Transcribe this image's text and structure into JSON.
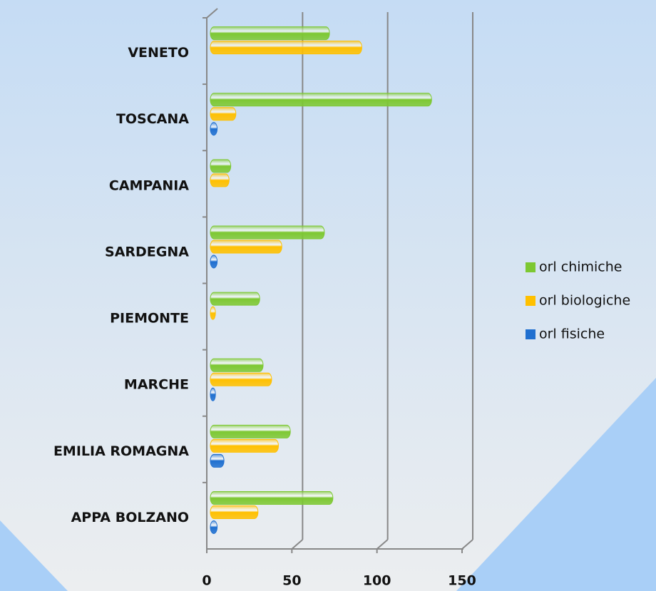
{
  "chart_data": {
    "type": "bar",
    "orientation": "horizontal",
    "categories": [
      "VENETO",
      "TOSCANA",
      "CAMPANIA",
      "SARDEGNA",
      "PIEMONTE",
      "MARCHE",
      "EMILIA ROMAGNA",
      "APPA BOLZANO"
    ],
    "series": [
      {
        "name": "orl chimiche",
        "color": "#7dc832",
        "values": [
          70,
          130,
          12,
          67,
          29,
          31,
          47,
          72
        ]
      },
      {
        "name": "orl biologiche",
        "color": "#ffc000",
        "values": [
          89,
          15,
          11,
          42,
          3,
          36,
          40,
          28
        ]
      },
      {
        "name": "orl fisiche",
        "color": "#1f6fd0",
        "values": [
          null,
          4,
          null,
          4,
          null,
          3,
          8,
          4
        ]
      }
    ],
    "xlim": [
      0,
      150
    ],
    "xticks": [
      0,
      50,
      100,
      150
    ],
    "grid": true,
    "legend": "right"
  }
}
